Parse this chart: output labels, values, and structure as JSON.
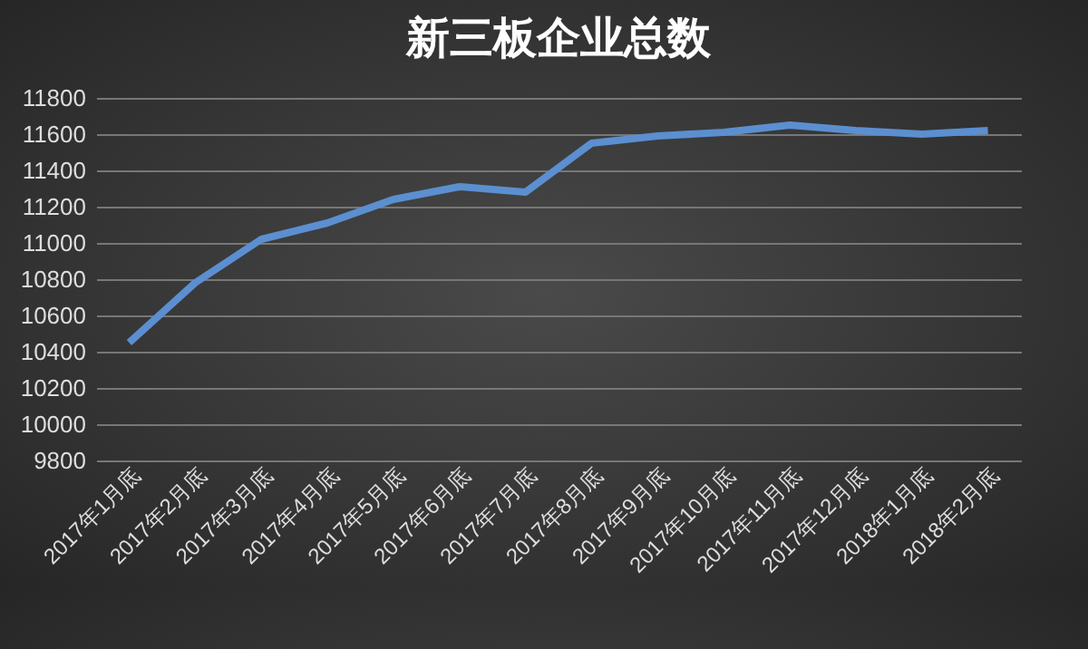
{
  "chart_data": {
    "type": "line",
    "title": "新三板企业总数",
    "categories": [
      "2017年1月底",
      "2017年2月底",
      "2017年3月底",
      "2017年4月底",
      "2017年5月底",
      "2017年6月底",
      "2017年7月底",
      "2017年8月底",
      "2017年9月底",
      "2017年10月底",
      "2017年11月底",
      "2017年12月底",
      "2018年1月底",
      "2018年2月底"
    ],
    "series": [
      {
        "color": "#5b8fd0",
        "values": [
          10450,
          10780,
          11020,
          11110,
          11240,
          11310,
          11280,
          11550,
          11590,
          11610,
          11650,
          11620,
          11600,
          11620
        ]
      }
    ],
    "ylim": [
      9800,
      11800
    ],
    "yticks": [
      9800,
      10000,
      10200,
      10400,
      10600,
      10800,
      11000,
      11200,
      11400,
      11600,
      11800
    ],
    "grid": "y",
    "marker": "none",
    "legend": false
  }
}
